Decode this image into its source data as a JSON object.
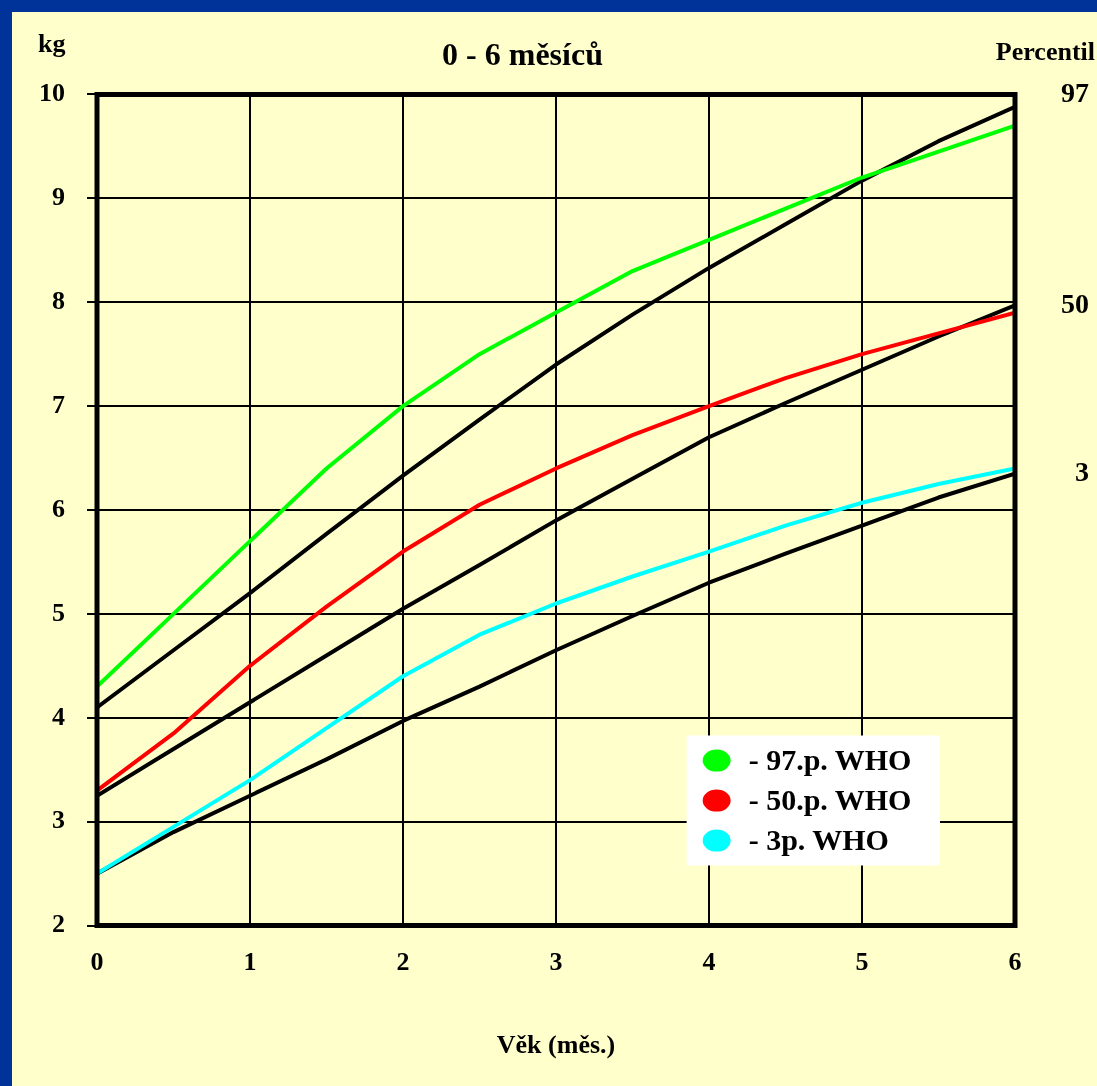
{
  "chart_data": {
    "type": "line",
    "title": "0 - 6 měsíců",
    "xlabel": "Věk (měs.)",
    "ylabel": "kg",
    "annotations": [
      "Percentil"
    ],
    "x": [
      0,
      0.5,
      1,
      1.5,
      2,
      2.5,
      3,
      3.5,
      4,
      4.5,
      5,
      5.5,
      6
    ],
    "series": [
      {
        "name": "- 97.p. WHO",
        "color": "#00ff00",
        "values": [
          4.3,
          5.0,
          5.7,
          6.4,
          7.0,
          7.5,
          7.9,
          8.3,
          8.6,
          8.9,
          9.2,
          9.45,
          9.7
        ]
      },
      {
        "name": "- 50.p. WHO",
        "color": "#ff0000",
        "values": [
          3.3,
          3.85,
          4.5,
          5.07,
          5.6,
          6.05,
          6.4,
          6.72,
          7.0,
          7.27,
          7.5,
          7.7,
          7.9
        ]
      },
      {
        "name": "- 3p. WHO",
        "color": "#00ffff",
        "values": [
          2.5,
          2.95,
          3.4,
          3.9,
          4.4,
          4.8,
          5.1,
          5.36,
          5.6,
          5.85,
          6.07,
          6.25,
          6.4
        ]
      },
      {
        "name": "97",
        "color": "#000000",
        "values": [
          4.1,
          4.65,
          5.2,
          5.77,
          6.33,
          6.87,
          7.4,
          7.88,
          8.33,
          8.75,
          9.17,
          9.55,
          9.88
        ]
      },
      {
        "name": "50",
        "color": "#000000",
        "values": [
          3.25,
          3.7,
          4.15,
          4.6,
          5.05,
          5.47,
          5.9,
          6.3,
          6.7,
          7.03,
          7.35,
          7.67,
          7.97
        ]
      },
      {
        "name": "3",
        "color": "#000000",
        "values": [
          2.5,
          2.9,
          3.25,
          3.6,
          3.97,
          4.3,
          4.65,
          4.98,
          5.3,
          5.58,
          5.85,
          6.12,
          6.35
        ]
      }
    ],
    "xlim": [
      0,
      6
    ],
    "xticks": [
      0,
      1,
      2,
      3,
      4,
      5,
      6
    ],
    "ylim": [
      2,
      10
    ],
    "yticks": [
      2,
      3,
      4,
      5,
      6,
      7,
      8,
      9,
      10
    ],
    "grid": true,
    "legend": "bottom right",
    "marker": "none",
    "line_style": "solid"
  }
}
